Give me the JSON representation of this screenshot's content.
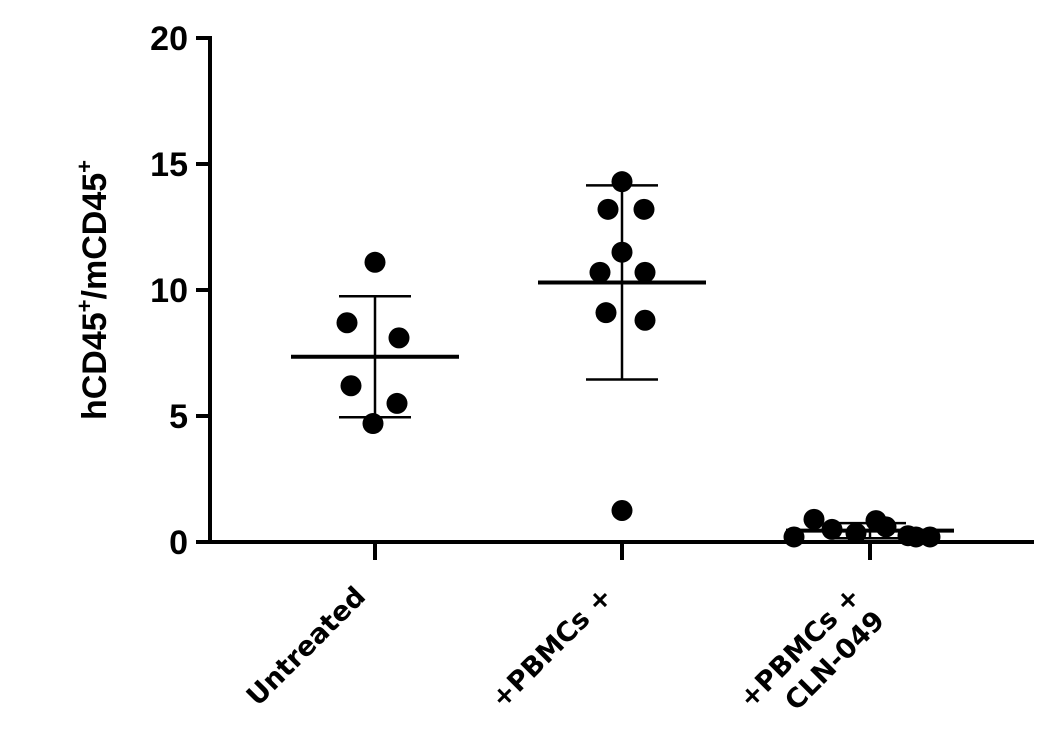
{
  "chart_data": {
    "type": "scatter",
    "ylabel_parts": [
      "hCD45",
      "+",
      "/mCD45",
      "+"
    ],
    "ylim": [
      0,
      20
    ],
    "yticks": [
      0,
      5,
      10,
      15,
      20
    ],
    "grid": false,
    "groups": [
      {
        "label_lines": [
          "Untreated"
        ],
        "points": [
          11.1,
          8.7,
          8.1,
          6.2,
          5.5,
          4.7
        ],
        "mean": 7.35,
        "sd_low": 4.95,
        "sd_high": 9.75
      },
      {
        "label_lines": [
          "+PBMCs  +"
        ],
        "points": [
          14.3,
          13.2,
          13.2,
          11.5,
          10.7,
          10.7,
          9.1,
          8.8,
          1.25
        ],
        "mean": 10.3,
        "sd_low": 6.45,
        "sd_high": 14.15
      },
      {
        "label_lines": [
          "+PBMCs  +",
          "CLN-049"
        ],
        "points": [
          0.9,
          0.85,
          0.6,
          0.5,
          0.35,
          0.25,
          0.2,
          0.2,
          0.2
        ],
        "mean": 0.45,
        "sd_low": 0.15,
        "sd_high": 0.75
      }
    ]
  }
}
